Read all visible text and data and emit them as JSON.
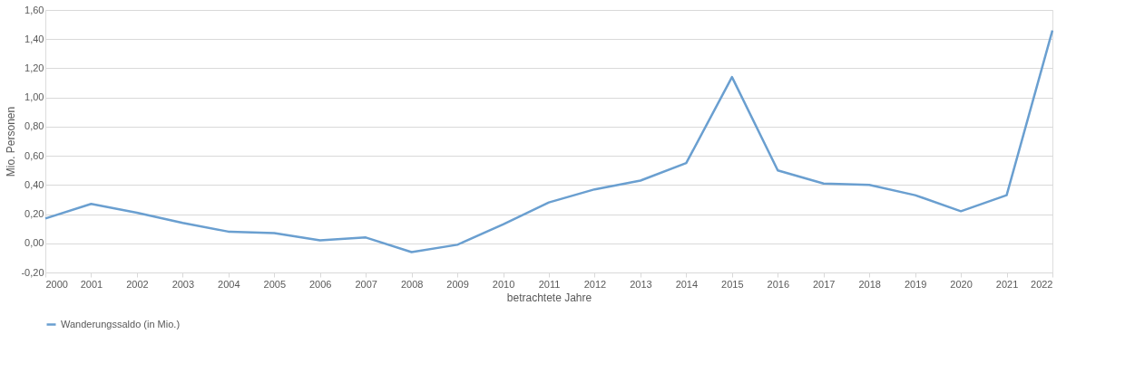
{
  "chart_data": {
    "type": "line",
    "xlabel": "betrachtete Jahre",
    "ylabel": "Mio. Personen",
    "categories": [
      "2000",
      "2001",
      "2002",
      "2003",
      "2004",
      "2005",
      "2006",
      "2007",
      "2008",
      "2009",
      "2010",
      "2011",
      "2012",
      "2013",
      "2014",
      "2015",
      "2016",
      "2017",
      "2018",
      "2019",
      "2020",
      "2021",
      "2022"
    ],
    "series": [
      {
        "name": "Wanderungssaldo (in Mio.)",
        "color": "#6a9fd0",
        "values": [
          0.17,
          0.27,
          0.21,
          0.14,
          0.08,
          0.07,
          0.02,
          0.04,
          -0.06,
          -0.01,
          0.13,
          0.28,
          0.37,
          0.43,
          0.55,
          1.14,
          0.5,
          0.41,
          0.4,
          0.33,
          0.22,
          0.33,
          1.46
        ]
      }
    ],
    "ylim": [
      -0.2,
      1.6
    ],
    "yticks": [
      {
        "value": -0.2,
        "label": "-0,20"
      },
      {
        "value": 0,
        "label": "0,00"
      },
      {
        "value": 0.2,
        "label": "0,20"
      },
      {
        "value": 0.4,
        "label": "0,40"
      },
      {
        "value": 0.6,
        "label": "0,60"
      },
      {
        "value": 0.8,
        "label": "0,80"
      },
      {
        "value": 1.0,
        "label": "1,00"
      },
      {
        "value": 1.2,
        "label": "1,20"
      },
      {
        "value": 1.4,
        "label": "1,40"
      },
      {
        "value": 1.6,
        "label": "1,60"
      }
    ],
    "grid": "y",
    "legend": "bottom",
    "marker": "none",
    "line_style": "solid"
  }
}
